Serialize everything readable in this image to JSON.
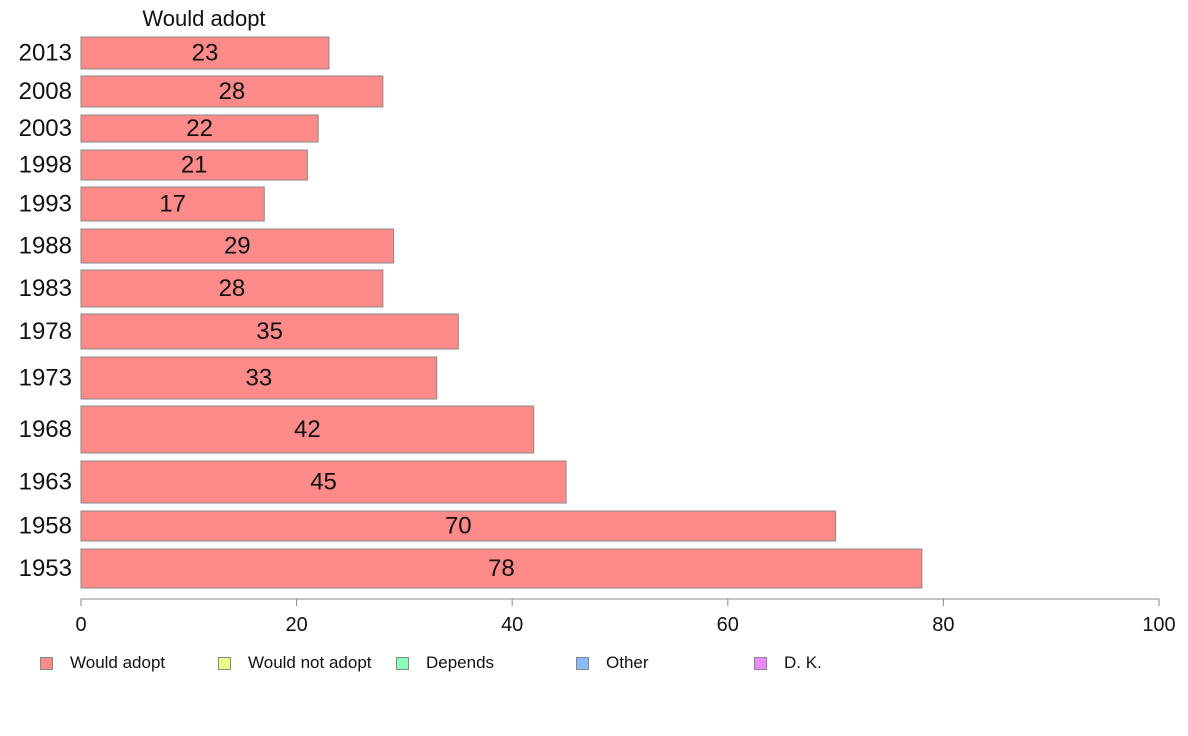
{
  "chart_data": {
    "type": "bar",
    "orientation": "horizontal",
    "series_header": "Would adopt",
    "categories": [
      "2013",
      "2008",
      "2003",
      "1998",
      "1993",
      "1988",
      "1983",
      "1978",
      "1973",
      "1968",
      "1963",
      "1958",
      "1953"
    ],
    "series": [
      {
        "name": "Would adopt",
        "values": [
          23,
          28,
          22,
          21,
          17,
          29,
          28,
          35,
          33,
          42,
          45,
          70,
          78
        ],
        "color": "#ff8a8a"
      }
    ],
    "xlim": [
      0,
      100
    ],
    "xticks": [
      0,
      20,
      40,
      60,
      80,
      100
    ],
    "xlabel": "",
    "ylabel": "",
    "grid": false,
    "legend": {
      "position": "bottom",
      "items": [
        {
          "label": "Would adopt",
          "color": "#ff8a8a"
        },
        {
          "label": "Would not adopt",
          "color": "#eeff88"
        },
        {
          "label": "Depends",
          "color": "#88ffbb"
        },
        {
          "label": "Other",
          "color": "#88bbff"
        },
        {
          "label": "D. K.",
          "color": "#ee88ff"
        }
      ]
    }
  }
}
